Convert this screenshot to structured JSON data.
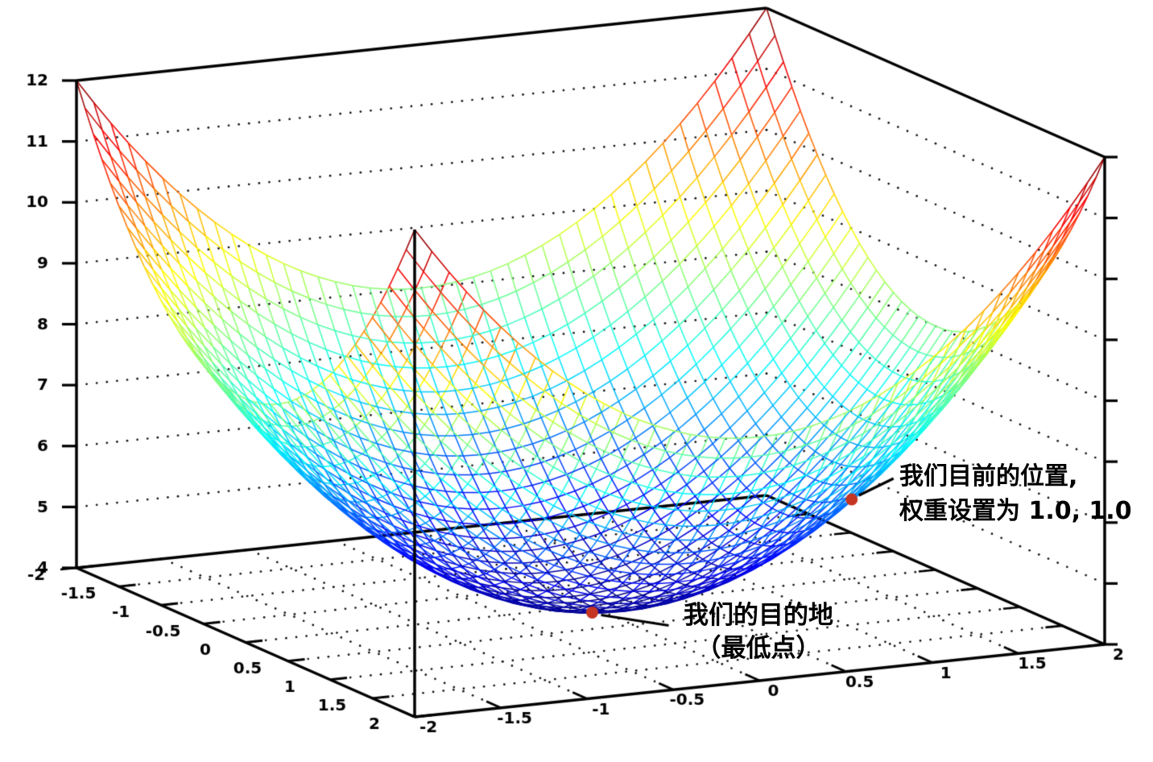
{
  "chart_data": {
    "type": "surface",
    "surface": {
      "expression": "z = x^2 + y^2 + 4",
      "style": "wireframe",
      "colormap": "jet",
      "x_min": -2,
      "x_max": 2,
      "y_min": -2,
      "y_max": 2,
      "z_min": 4,
      "z_max": 12,
      "grid_step": 0.1
    },
    "axes": {
      "x_ticks": [
        -2,
        -1.5,
        -1,
        -0.5,
        0,
        0.5,
        1,
        1.5,
        2
      ],
      "y_ticks": [
        -2,
        -1.5,
        -1,
        -0.5,
        0,
        0.5,
        1,
        1.5,
        2
      ],
      "z_ticks": [
        4,
        5,
        6,
        7,
        8,
        9,
        10,
        11,
        12
      ],
      "grid_style": "dotted",
      "box": true
    },
    "annotations": [
      {
        "id": "current-position",
        "point": {
          "x": 1,
          "y": 1,
          "z": 6
        },
        "marker": "dot",
        "lines": [
          "我们目前的位置,",
          "权重设置为 1.0, 1.0"
        ]
      },
      {
        "id": "destination",
        "point": {
          "x": 0,
          "y": 0,
          "z": 4
        },
        "marker": "dot",
        "lines": [
          "我们的目的地",
          "（最低点）"
        ]
      }
    ],
    "colors": {
      "marker": "#c43522",
      "axis": "#000000",
      "grid_dots": "#111111",
      "background": "#ffffff",
      "annotation_text": "#000000"
    }
  }
}
